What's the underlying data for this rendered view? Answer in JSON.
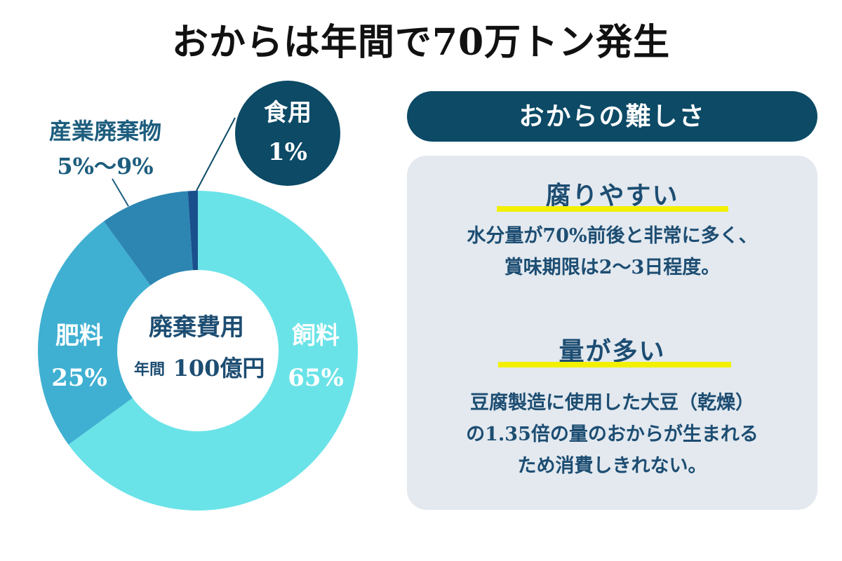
{
  "title": "おからは年間で70万トン発生",
  "chart_data": {
    "type": "pie",
    "title": "おからは年間で70万トン発生",
    "center": {
      "title": "廃棄費用",
      "amount_label": "年間",
      "amount": "100億円"
    },
    "slices": [
      {
        "name": "飼料",
        "label": "65%",
        "value": 65,
        "color": "#6ae3e8"
      },
      {
        "name": "肥料",
        "label": "25%",
        "value": 25,
        "color": "#3fb0d2"
      },
      {
        "name": "産業廃棄物",
        "label": "5%〜9%",
        "value": 9,
        "color": "#2d86b2"
      },
      {
        "name": "食用",
        "label": "1%",
        "value": 1,
        "color": "#1a4f8d"
      }
    ]
  },
  "callout": {
    "name": "食用",
    "label": "1%",
    "color": "#0c4a66"
  },
  "panel": {
    "header": "おからの難しさ",
    "points": [
      {
        "title": "腐りやすい",
        "text": "水分量が70%前後と非常に多く、\n賞味期限は2〜3日程度。"
      },
      {
        "title": "量が多い",
        "text": "豆腐製造に使用した大豆（乾燥）\nの1.35倍の量のおからが生まれる\nため消費しきれない。"
      }
    ]
  },
  "colors": {
    "header_bg": "#0c4a66",
    "panel_bg": "#e3e9ef",
    "highlight": "#f2f000",
    "text_dark": "#1d4d72",
    "label_outside": "#1d5d7e"
  }
}
